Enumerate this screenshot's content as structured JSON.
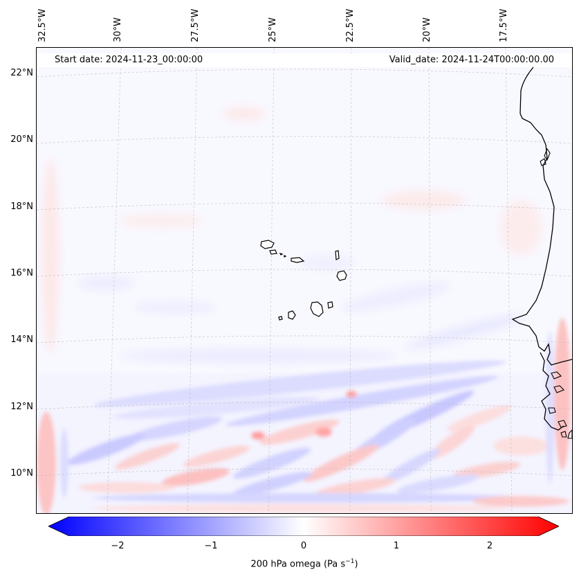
{
  "map": {
    "start_date": "Start date: 2024-11-23_00:00:00",
    "valid_date": "Valid_date: 2024-11-24T00:00:00.00",
    "lon_labels": [
      "32.5°W",
      "30°W",
      "27.5°W",
      "25°W",
      "22.5°W",
      "20°W",
      "17.5°W"
    ],
    "lat_labels": [
      "22°N",
      "20°N",
      "18°N",
      "16°N",
      "14°N",
      "12°N",
      "10°N"
    ],
    "colors": {
      "negative": "#0000ff",
      "zero": "#ffffff",
      "positive": "#ff0000",
      "coast": "#000000"
    }
  },
  "colorbar": {
    "ticks": [
      "−2",
      "−1",
      "0",
      "1",
      "2"
    ],
    "label_main": "200 hPa omega (Pa s",
    "label_exp": "−1",
    "label_close": ")"
  }
}
